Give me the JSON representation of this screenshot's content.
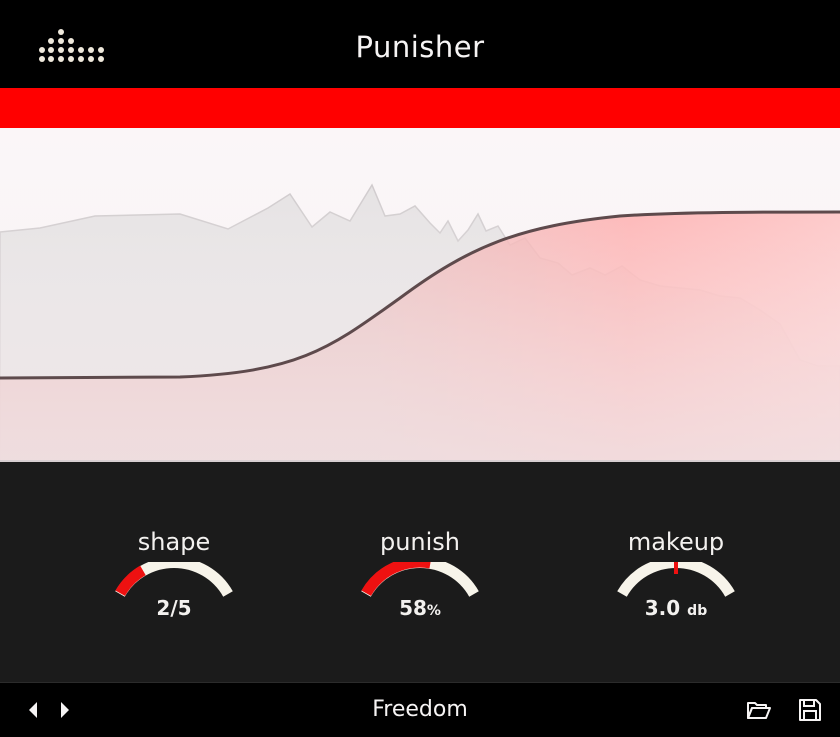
{
  "header": {
    "title": "Punisher",
    "logo_icon": "dot-matrix-logo-icon"
  },
  "colors": {
    "accent": "#ff0000",
    "header_bg": "#000000",
    "panel_bg": "#1b1b1b",
    "text": "#f6f4f4"
  },
  "controls": {
    "shape": {
      "label": "shape",
      "value": "2/5",
      "unit": "",
      "level": 0.25
    },
    "punish": {
      "label": "punish",
      "value": "58",
      "unit": "%",
      "level": 0.58
    },
    "makeup": {
      "label": "makeup",
      "value": "3.0",
      "unit": "db",
      "level": 0.5
    }
  },
  "footer": {
    "preset": "Freedom",
    "prev_icon": "caret-left-icon",
    "next_icon": "caret-right-icon",
    "open_icon": "folder-open-icon",
    "save_icon": "floppy-disk-icon"
  }
}
